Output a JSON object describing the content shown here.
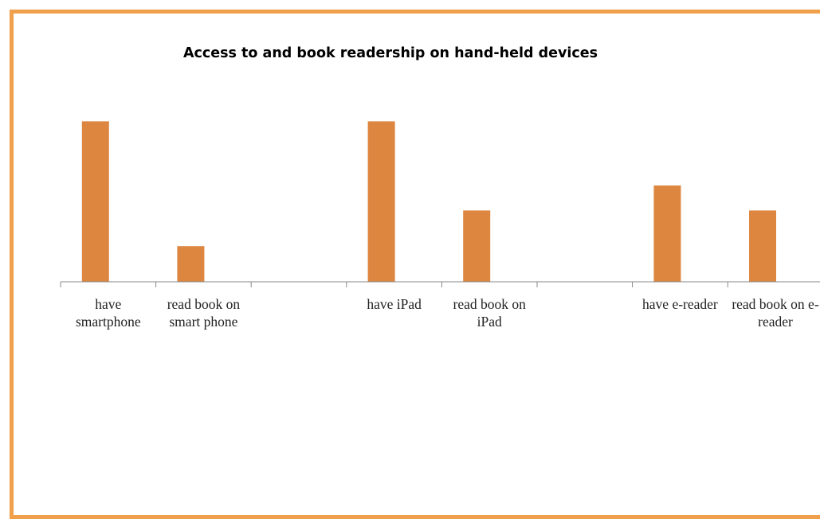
{
  "chart_data": {
    "type": "bar",
    "title": "Access to and book readership on hand-held devices",
    "categories": [
      "have smartphone",
      "read book on smart phone",
      null,
      "have iPad",
      "read book on iPad",
      null,
      "have e-reader",
      "read book on e-reader"
    ],
    "values": [
      45,
      10,
      null,
      45,
      20,
      null,
      27,
      20
    ],
    "color": "#dd8640",
    "ylim": [
      0,
      50
    ]
  }
}
